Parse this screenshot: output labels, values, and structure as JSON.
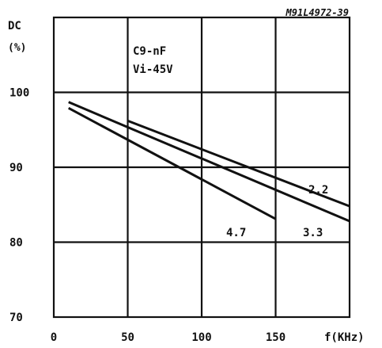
{
  "chart_data": {
    "type": "line",
    "figure_code": "M91L4972-39",
    "ylabel": "DC",
    "yunit": "(%)",
    "xlabel": "f(KHz)",
    "conditions": [
      "C9-nF",
      "Vi-45V"
    ],
    "xlim": [
      0,
      200
    ],
    "ylim": [
      70,
      110
    ],
    "xticks": [
      0,
      50,
      100,
      150
    ],
    "xtick_labels": [
      "0",
      "50",
      "100",
      "150"
    ],
    "yticks": [
      70,
      80,
      90,
      100
    ],
    "ytick_labels": [
      "70",
      "80",
      "90",
      "100"
    ],
    "grid": true,
    "series": [
      {
        "name": "2.2",
        "x": [
          50,
          200
        ],
        "y": [
          96.2,
          84.8
        ]
      },
      {
        "name": "3.3",
        "x": [
          10,
          200
        ],
        "y": [
          98.7,
          82.8
        ]
      },
      {
        "name": "4.7",
        "x": [
          10,
          150
        ],
        "y": [
          97.9,
          83.1
        ]
      }
    ]
  }
}
